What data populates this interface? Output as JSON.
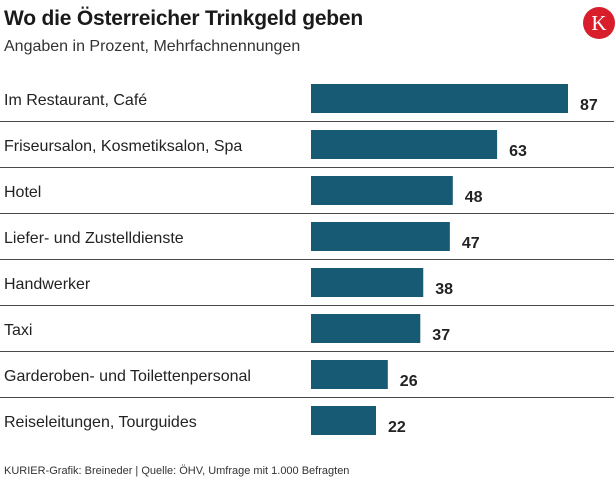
{
  "header": {
    "title": "Wo die Österreicher Trinkgeld geben",
    "subtitle": "Angaben in Prozent, Mehrfachnennungen",
    "logo_letter": "K"
  },
  "footer": {
    "source": "KURIER-Grafik: Breineder | Quelle: ÖHV, Umfrage mit 1.000 Befragten"
  },
  "colors": {
    "bar": "#165a73",
    "divider": "#4a4a4a",
    "logo_bg": "#d81e2a"
  },
  "chart_data": {
    "type": "bar",
    "orientation": "horizontal",
    "title": "Wo die Österreicher Trinkgeld geben",
    "subtitle": "Angaben in Prozent, Mehrfachnennungen",
    "xlabel": "",
    "ylabel": "",
    "xlim": [
      0,
      100
    ],
    "grid": false,
    "categories": [
      "Im Restaurant, Café",
      "Friseursalon, Kosmetiksalon, Spa",
      "Hotel",
      "Liefer- und Zustelldienste",
      "Handwerker",
      "Taxi",
      "Garderoben- und Toilettenpersonal",
      "Reiseleitungen, Tourguides"
    ],
    "values": [
      87,
      63,
      48,
      47,
      38,
      37,
      26,
      22
    ]
  }
}
